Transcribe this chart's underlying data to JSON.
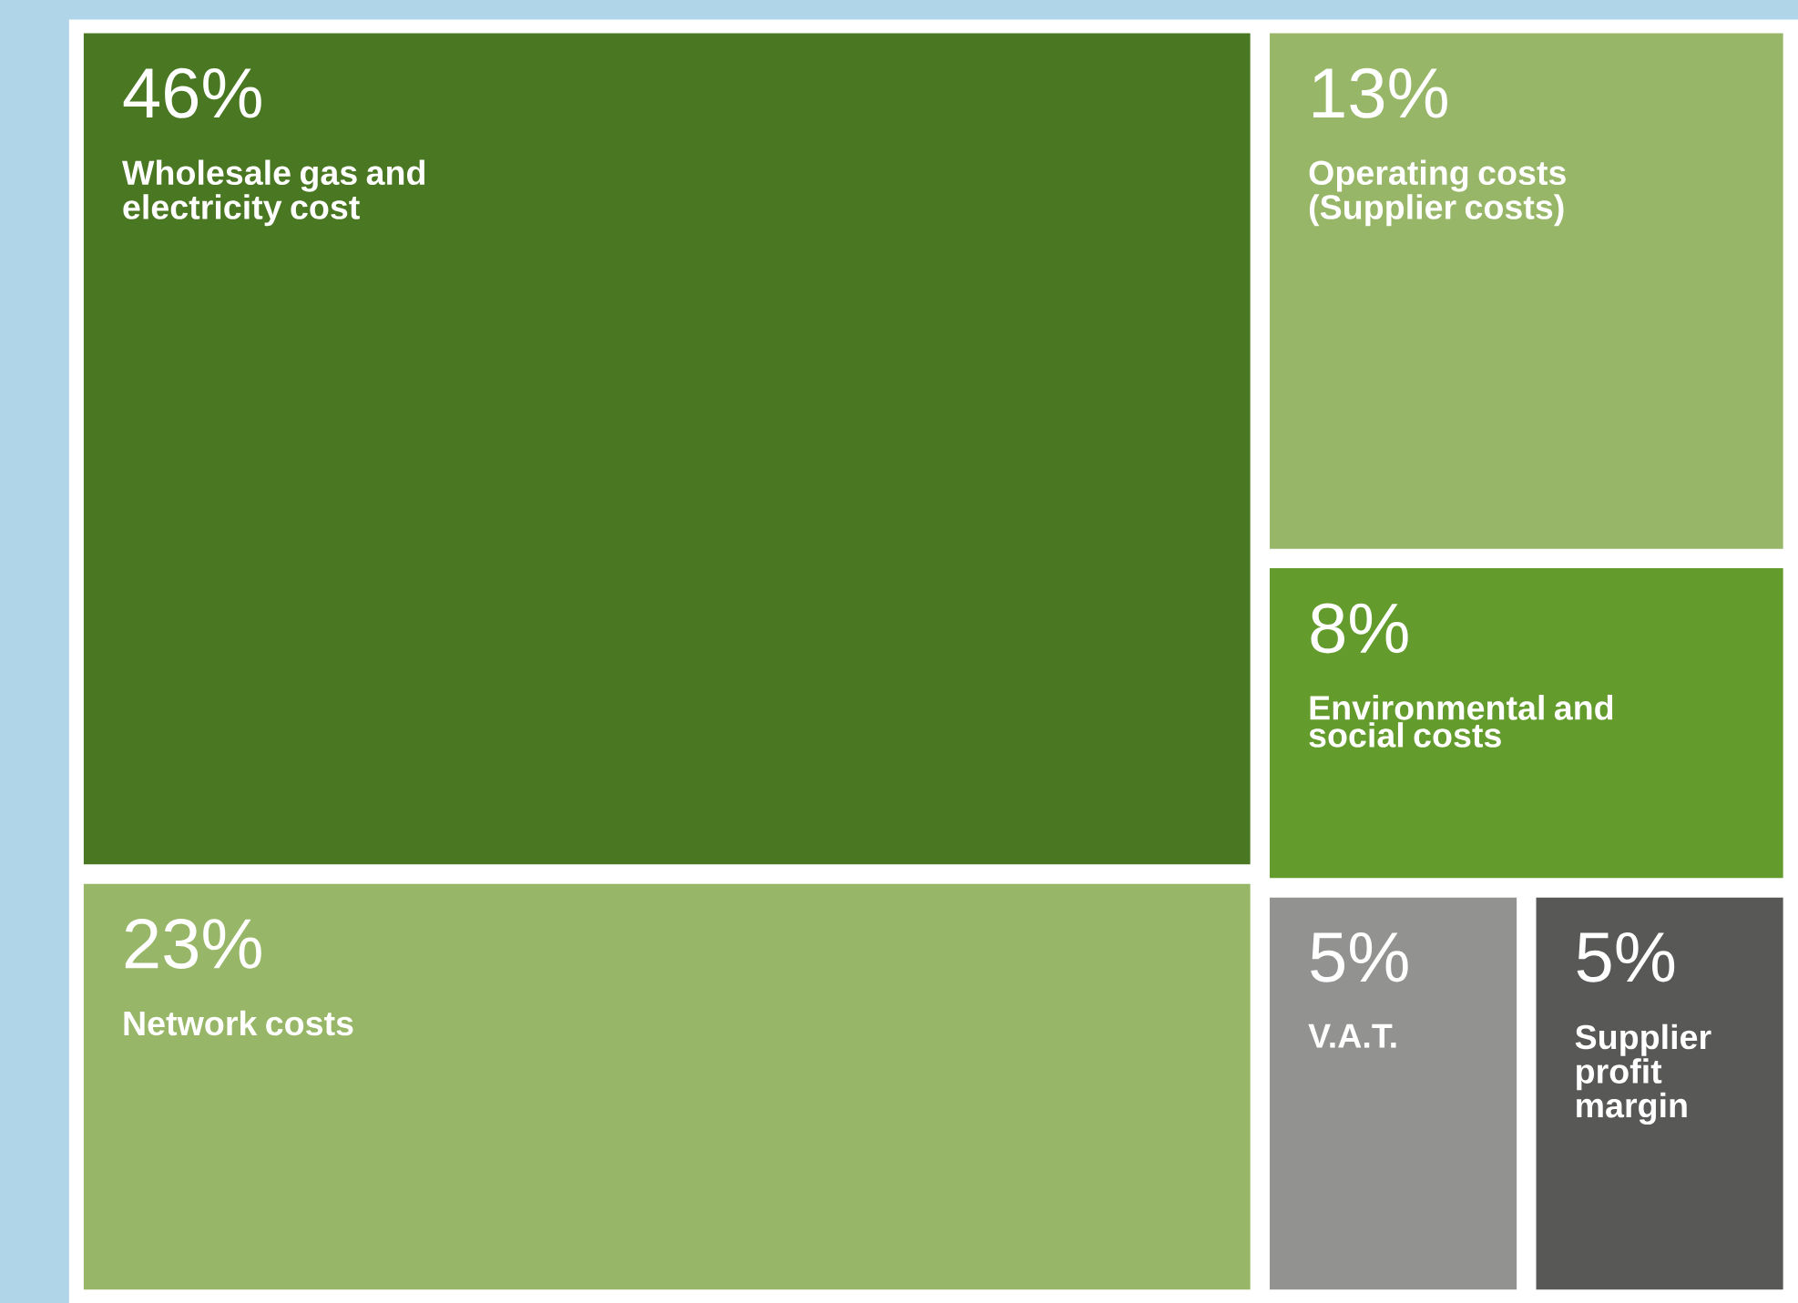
{
  "chart_data": {
    "type": "other",
    "categories": [
      "Wholesale gas and electricity cost",
      "Operating costs (Supplier costs)",
      "Environmental and social costs",
      "Network costs",
      "V.A.T.",
      "Supplier profit margin"
    ],
    "values": [
      46,
      13,
      8,
      23,
      5,
      5
    ],
    "value_labels": [
      "46%",
      "13%",
      "8%",
      "23%",
      "5%",
      "5%"
    ],
    "colors": [
      "#4a7722",
      "#97b667",
      "#639b2c",
      "#97b667",
      "#929290",
      "#585857"
    ]
  }
}
